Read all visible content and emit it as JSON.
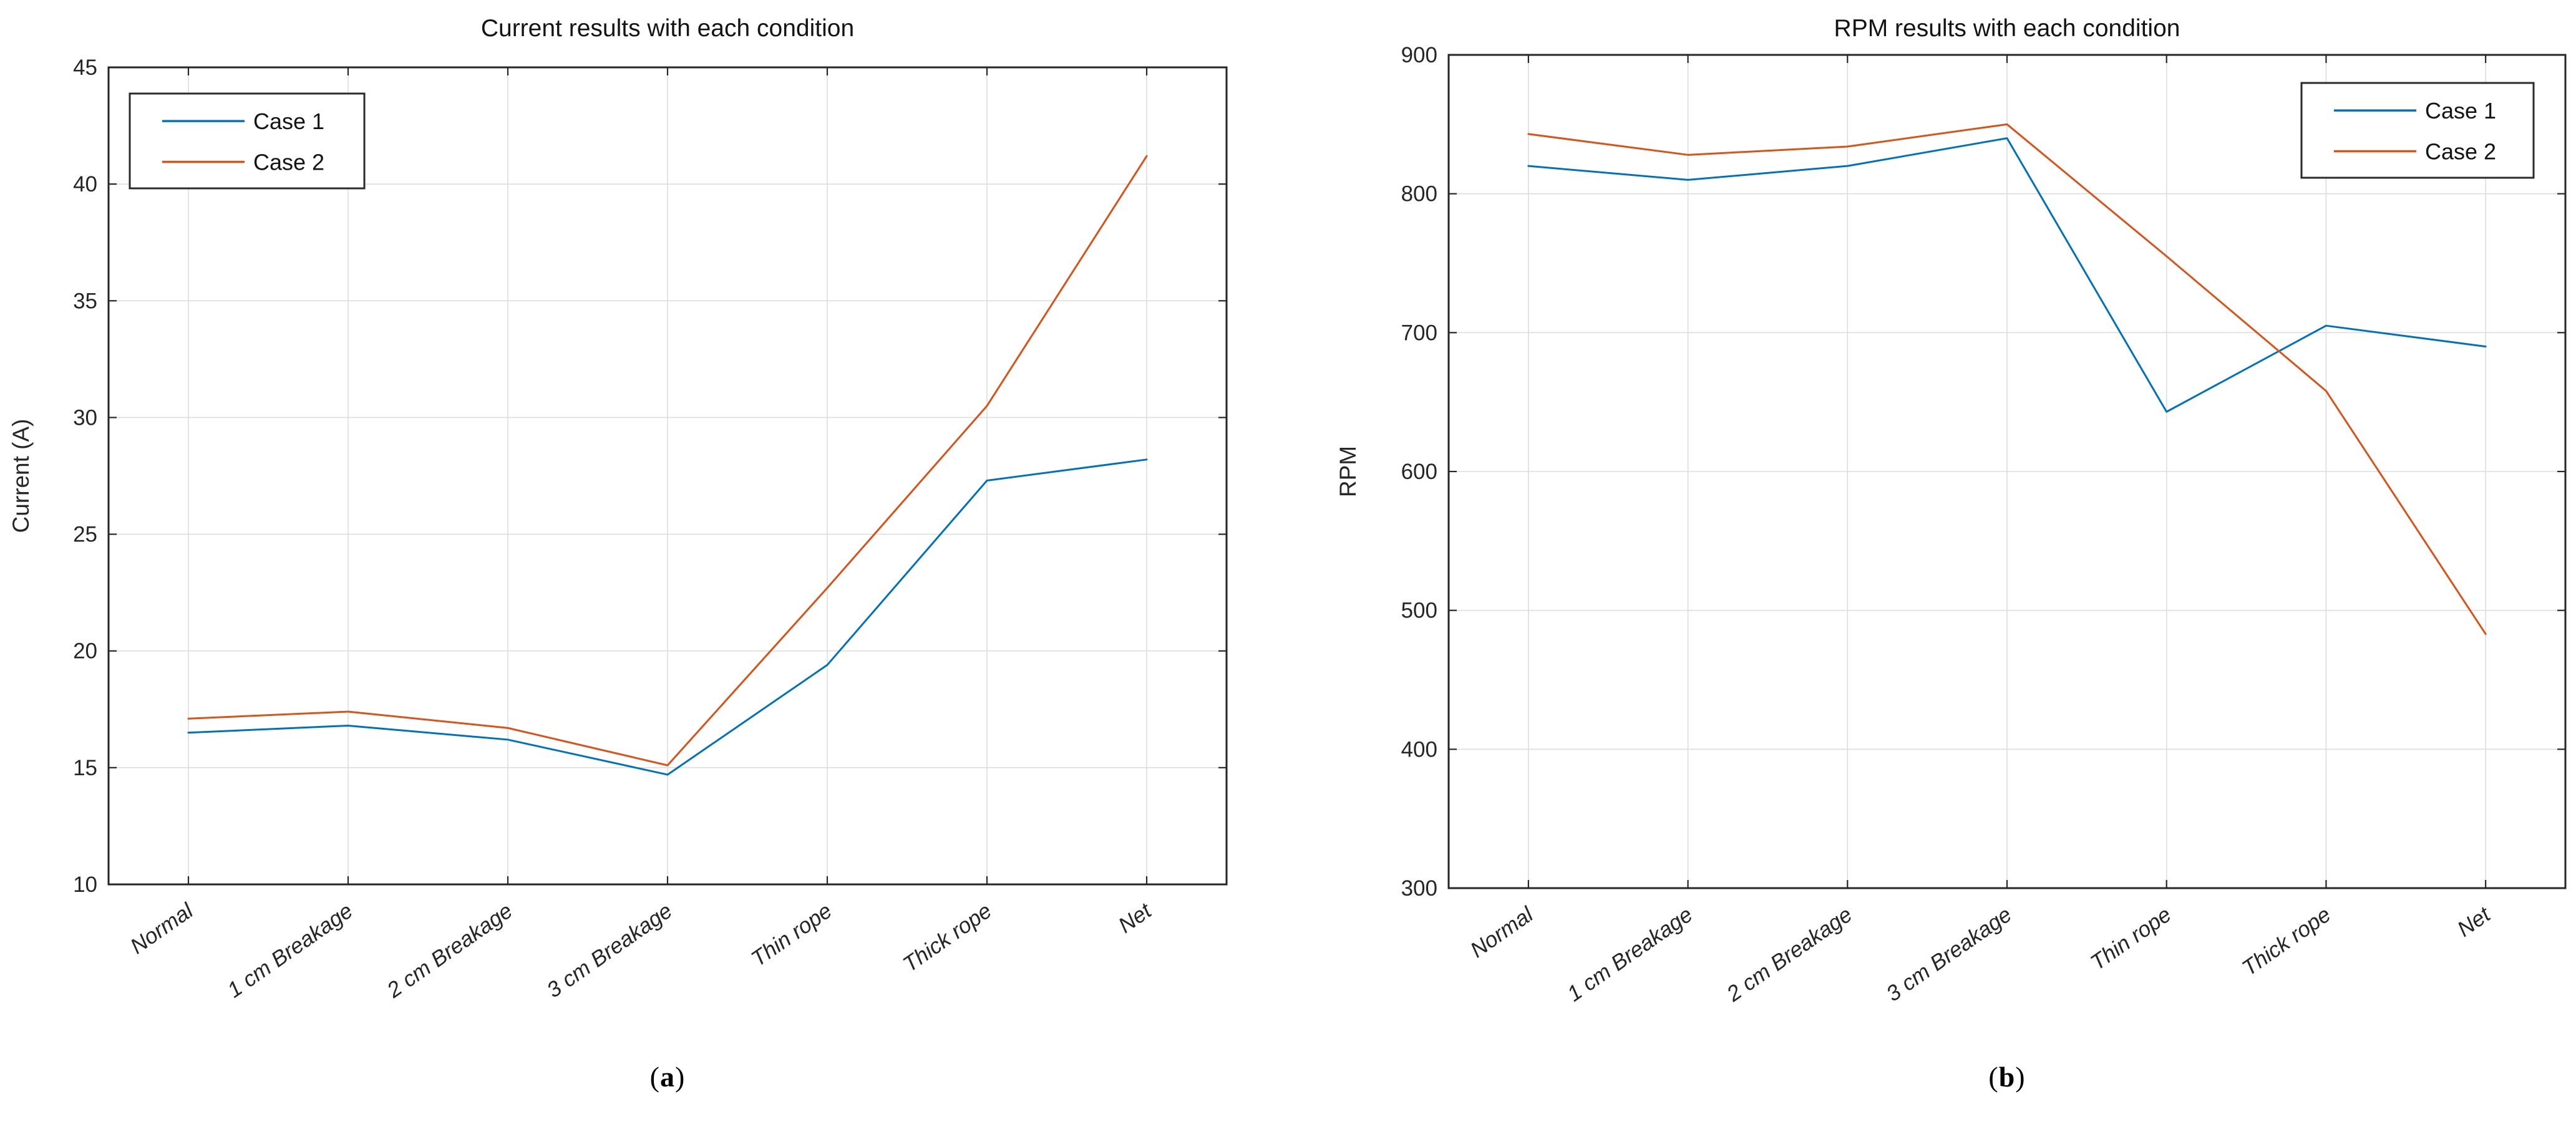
{
  "chart_data": [
    {
      "type": "line",
      "title": "Current results with each condition",
      "xlabel": "",
      "ylabel": "Current (A)",
      "categories": [
        "Normal",
        "1 cm Breakage",
        "2 cm Breakage",
        "3 cm Breakage",
        "Thin rope",
        "Thick rope",
        "Net"
      ],
      "ylim": [
        10,
        45
      ],
      "yticks": [
        10,
        15,
        20,
        25,
        30,
        35,
        40,
        45
      ],
      "ytick_labels": [
        "10",
        "15",
        "20",
        "25",
        "30",
        "35",
        "40",
        "45"
      ],
      "grid": true,
      "legend_position": "northwest",
      "series": [
        {
          "name": "Case 1",
          "color": "#0072BD",
          "values": [
            16.5,
            16.8,
            16.2,
            14.7,
            19.4,
            27.3,
            28.2
          ]
        },
        {
          "name": "Case 2",
          "color": "#D95319",
          "values": [
            17.1,
            17.4,
            16.7,
            15.1,
            22.7,
            30.5,
            41.2
          ]
        }
      ]
    },
    {
      "type": "line",
      "title": "RPM results with each condition",
      "xlabel": "",
      "ylabel": "RPM",
      "categories": [
        "Normal",
        "1 cm Breakage",
        "2 cm Breakage",
        "3 cm Breakage",
        "Thin rope",
        "Thick rope",
        "Net"
      ],
      "ylim": [
        300,
        900
      ],
      "yticks": [
        300,
        400,
        500,
        600,
        700,
        800,
        900
      ],
      "ytick_labels": [
        "300",
        "400",
        "500",
        "600",
        "700",
        "800",
        "900"
      ],
      "grid": true,
      "legend_position": "northeast",
      "series": [
        {
          "name": "Case 1",
          "color": "#0072BD",
          "values": [
            820,
            810,
            820,
            840,
            643,
            705,
            690
          ]
        },
        {
          "name": "Case 2",
          "color": "#D95319",
          "values": [
            843,
            828,
            834,
            850,
            755,
            658,
            483
          ]
        }
      ]
    }
  ],
  "captions": [
    {
      "open": "(",
      "letter": "a",
      "close": ")"
    },
    {
      "open": "(",
      "letter": "b",
      "close": ")"
    }
  ],
  "colors": {
    "axis": "#262626",
    "grid": "#DDDDDD",
    "title_text": "#141414",
    "tick_label_text": "#262626",
    "legend_border": "#2b2b2b",
    "background": "#ffffff",
    "case1": "#0072BD",
    "case2": "#D95319"
  }
}
